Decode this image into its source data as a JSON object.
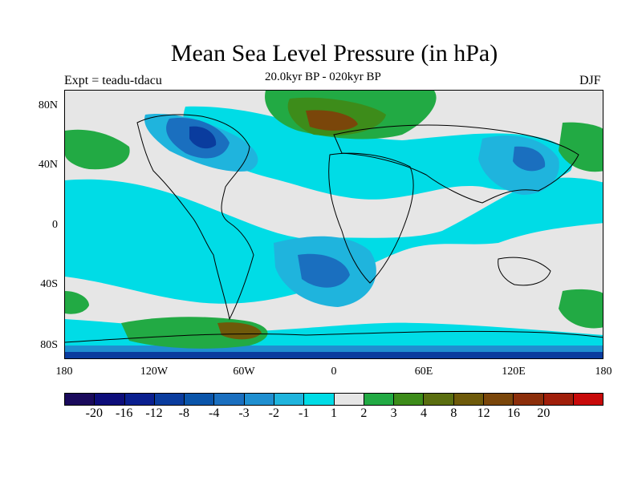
{
  "title": "Mean Sea Level Pressure (in hPa)",
  "subtitle": "20.0kyr BP - 020kyr BP",
  "left_label": "Expt = teadu-tdacu",
  "right_label": "DJF",
  "lat_labels": [
    "80N",
    "40N",
    "0",
    "40S",
    "80S"
  ],
  "lon_labels": [
    "180",
    "120W",
    "60W",
    "0",
    "60E",
    "120E",
    "180"
  ],
  "colorbar": {
    "colors": [
      "#1a0a5c",
      "#0d0d7a",
      "#0a1f8f",
      "#0a3c9e",
      "#0a55aa",
      "#1a6fbf",
      "#1f8fd0",
      "#1fb4dd",
      "#00dce6",
      "#e6e6e6",
      "#22aa44",
      "#3d8c1a",
      "#5a6e10",
      "#6e5a0a",
      "#7a460a",
      "#8c2e0a",
      "#a01e0a",
      "#c80a0a"
    ],
    "labels": [
      "-20",
      "-16",
      "-12",
      "-8",
      "-4",
      "-3",
      "-2",
      "-1",
      "1",
      "2",
      "3",
      "4",
      "8",
      "12",
      "16",
      "20"
    ]
  }
}
